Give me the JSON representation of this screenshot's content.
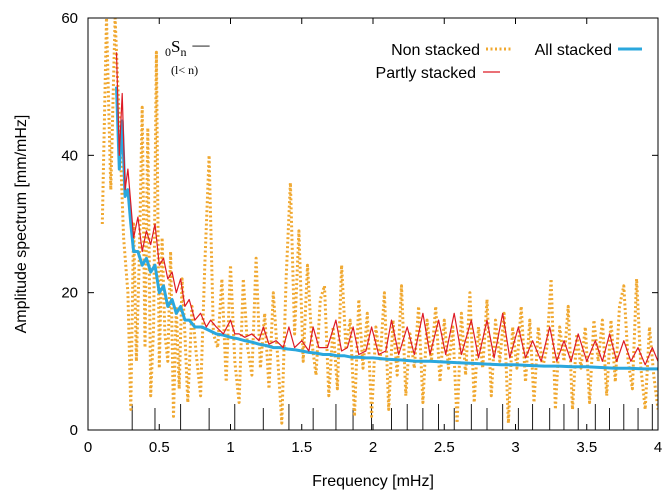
{
  "chart_data": {
    "type": "line",
    "title": "",
    "xlabel": "Frequency [mHz]",
    "ylabel": "Amplitude spectrum [mm/mHz]",
    "xlim": [
      0,
      4
    ],
    "ylim": [
      0,
      60
    ],
    "xticks": [
      0,
      0.5,
      1,
      1.5,
      2,
      2.5,
      3,
      3.5,
      4
    ],
    "xtick_labels": [
      "0",
      "0.5",
      "1",
      "1.5",
      "2",
      "2.5",
      "3",
      "3.5",
      "4"
    ],
    "yticks": [
      0,
      20,
      40,
      60
    ],
    "ytick_labels": [
      "0",
      "20",
      "40",
      "60"
    ],
    "grid": false,
    "legend_position": "top-right",
    "annotation": {
      "base": "S",
      "pre_sub": "0",
      "sub": "n",
      "dash": "—",
      "note": "(l< n)"
    },
    "mode_lines": [
      0.31,
      0.47,
      0.65,
      0.85,
      1.03,
      1.23,
      1.41,
      1.58,
      1.74,
      1.86,
      1.99,
      2.13,
      2.24,
      2.35,
      2.46,
      2.57,
      2.69,
      2.8,
      2.91,
      3.02,
      3.12,
      3.24,
      3.34,
      3.44,
      3.56,
      3.66,
      3.76,
      3.86,
      3.96
    ],
    "series": [
      {
        "name": "Non stacked",
        "color": "#f0a830",
        "style": "dotted",
        "x": [
          0.1,
          0.13,
          0.16,
          0.19,
          0.22,
          0.25,
          0.28,
          0.3,
          0.32,
          0.34,
          0.36,
          0.38,
          0.4,
          0.42,
          0.44,
          0.46,
          0.48,
          0.5,
          0.52,
          0.54,
          0.56,
          0.58,
          0.6,
          0.62,
          0.64,
          0.66,
          0.68,
          0.7,
          0.73,
          0.76,
          0.79,
          0.82,
          0.85,
          0.88,
          0.91,
          0.94,
          0.97,
          1.0,
          1.03,
          1.06,
          1.09,
          1.12,
          1.15,
          1.18,
          1.21,
          1.24,
          1.27,
          1.3,
          1.33,
          1.36,
          1.39,
          1.42,
          1.45,
          1.48,
          1.51,
          1.54,
          1.57,
          1.6,
          1.63,
          1.66,
          1.69,
          1.72,
          1.75,
          1.78,
          1.81,
          1.84,
          1.87,
          1.9,
          1.93,
          1.96,
          1.99,
          2.02,
          2.05,
          2.08,
          2.11,
          2.14,
          2.17,
          2.2,
          2.23,
          2.26,
          2.29,
          2.32,
          2.35,
          2.38,
          2.41,
          2.44,
          2.47,
          2.5,
          2.53,
          2.56,
          2.59,
          2.62,
          2.65,
          2.68,
          2.71,
          2.74,
          2.77,
          2.8,
          2.83,
          2.86,
          2.89,
          2.92,
          2.95,
          2.98,
          3.01,
          3.04,
          3.07,
          3.1,
          3.13,
          3.16,
          3.19,
          3.22,
          3.25,
          3.28,
          3.31,
          3.34,
          3.37,
          3.4,
          3.43,
          3.46,
          3.49,
          3.52,
          3.55,
          3.58,
          3.61,
          3.64,
          3.67,
          3.7,
          3.73,
          3.76,
          3.79,
          3.82,
          3.85,
          3.88,
          3.91,
          3.94,
          3.97,
          4.0
        ],
        "y": [
          30,
          60,
          35,
          60,
          45,
          28,
          20,
          3,
          30,
          10,
          25,
          47,
          12,
          44,
          5,
          15,
          55,
          9,
          28,
          14,
          10,
          26,
          2,
          18,
          6,
          22,
          14,
          4,
          18,
          11,
          5,
          24,
          40,
          14,
          12,
          22,
          7,
          24,
          10,
          4,
          22,
          12,
          8,
          25,
          9,
          17,
          6,
          20,
          11,
          1,
          22,
          36,
          14,
          29,
          10,
          24,
          13,
          8,
          19,
          21,
          5,
          15,
          6,
          24,
          12,
          16,
          2,
          19,
          9,
          17,
          2,
          15,
          10,
          20,
          3,
          16,
          8,
          21,
          5,
          14,
          9,
          18,
          4,
          16,
          10,
          18,
          7,
          16,
          9,
          15,
          1,
          17,
          8,
          20,
          4,
          15,
          9,
          19,
          5,
          16,
          10,
          17,
          1,
          15,
          9,
          18,
          7,
          16,
          4,
          15,
          9,
          12,
          22,
          3,
          15,
          10,
          18,
          3,
          14,
          9,
          15,
          4,
          16,
          10,
          16,
          5,
          16,
          7,
          18,
          21,
          10,
          6,
          22,
          9,
          3,
          15,
          8,
          3
        ]
      },
      {
        "name": "Partly stacked",
        "color": "#dd1a25",
        "style": "solid",
        "x": [
          0.2,
          0.22,
          0.24,
          0.26,
          0.28,
          0.3,
          0.32,
          0.35,
          0.38,
          0.41,
          0.44,
          0.47,
          0.5,
          0.53,
          0.56,
          0.59,
          0.62,
          0.65,
          0.68,
          0.71,
          0.75,
          0.79,
          0.83,
          0.86,
          0.9,
          0.95,
          1.0,
          1.03,
          1.06,
          1.1,
          1.15,
          1.2,
          1.23,
          1.27,
          1.32,
          1.37,
          1.41,
          1.45,
          1.5,
          1.55,
          1.58,
          1.62,
          1.68,
          1.74,
          1.78,
          1.82,
          1.86,
          1.9,
          1.95,
          1.99,
          2.04,
          2.09,
          2.13,
          2.18,
          2.24,
          2.29,
          2.35,
          2.4,
          2.46,
          2.51,
          2.57,
          2.62,
          2.69,
          2.74,
          2.8,
          2.85,
          2.91,
          2.96,
          3.02,
          3.07,
          3.12,
          3.18,
          3.24,
          3.29,
          3.34,
          3.39,
          3.44,
          3.5,
          3.56,
          3.61,
          3.66,
          3.71,
          3.76,
          3.81,
          3.86,
          3.91,
          3.96,
          4.0
        ],
        "y": [
          55,
          40,
          49,
          35,
          38,
          33,
          28,
          31,
          26,
          29,
          27,
          30,
          24,
          25,
          22,
          23,
          20,
          22,
          18,
          19,
          16,
          17,
          15,
          16,
          15,
          14,
          16,
          14,
          14,
          13.5,
          14,
          13,
          15,
          12.5,
          13,
          12,
          15,
          12,
          13,
          11.5,
          15,
          12,
          12,
          16,
          11.5,
          12,
          15,
          11,
          11.5,
          15,
          11,
          11.5,
          16,
          11,
          15,
          11,
          17,
          11,
          16,
          11,
          17,
          11,
          16,
          10.5,
          16,
          10.5,
          17,
          10.5,
          15,
          10.5,
          13,
          10,
          15,
          10,
          13,
          10,
          14,
          10,
          13,
          10,
          14,
          10,
          13,
          10,
          12,
          9.5,
          12,
          10
        ]
      },
      {
        "name": "All stacked",
        "color": "#2aa7dd",
        "style": "solid",
        "x": [
          0.2,
          0.22,
          0.24,
          0.26,
          0.28,
          0.3,
          0.32,
          0.35,
          0.38,
          0.41,
          0.44,
          0.47,
          0.5,
          0.53,
          0.56,
          0.59,
          0.62,
          0.65,
          0.68,
          0.71,
          0.75,
          0.8,
          0.85,
          0.9,
          0.95,
          1.0,
          1.05,
          1.1,
          1.15,
          1.2,
          1.25,
          1.3,
          1.35,
          1.4,
          1.45,
          1.5,
          1.55,
          1.6,
          1.65,
          1.7,
          1.75,
          1.8,
          1.85,
          1.9,
          1.95,
          2.0,
          2.1,
          2.2,
          2.3,
          2.4,
          2.5,
          2.6,
          2.7,
          2.8,
          2.9,
          3.0,
          3.1,
          3.2,
          3.3,
          3.4,
          3.5,
          3.6,
          3.7,
          3.8,
          3.9,
          4.0
        ],
        "y": [
          50,
          38,
          45,
          34,
          35,
          30,
          26,
          26,
          24,
          25,
          23,
          24,
          20,
          21,
          18,
          19,
          17,
          18,
          16,
          16,
          15,
          15,
          14.5,
          14,
          13.8,
          13.5,
          13.3,
          13,
          12.8,
          12.5,
          12.3,
          12,
          12,
          11.8,
          11.7,
          11.5,
          11.3,
          11.2,
          11,
          11,
          10.8,
          10.8,
          10.6,
          10.6,
          10.5,
          10.5,
          10.3,
          10.2,
          10,
          10,
          9.9,
          9.8,
          9.7,
          9.6,
          9.5,
          9.5,
          9.4,
          9.3,
          9.3,
          9.2,
          9.2,
          9.1,
          9.0,
          9.0,
          8.9,
          8.9
        ]
      }
    ]
  }
}
